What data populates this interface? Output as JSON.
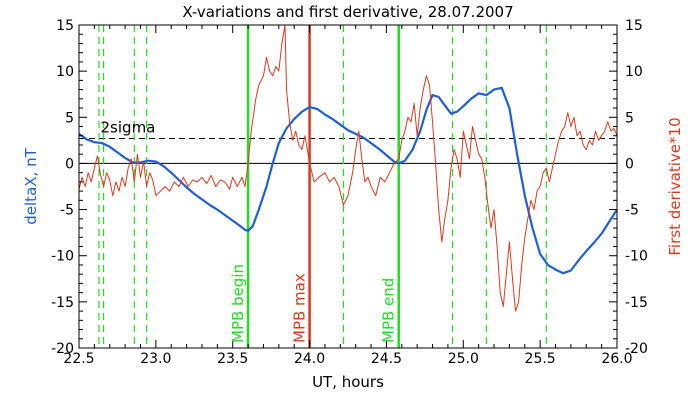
{
  "chart_data": {
    "type": "line",
    "title": "X-variations and first derivative, 28.07.2007",
    "xlabel": "UT, hours",
    "ylabel_left": "deltaX, nT",
    "ylabel_right": "First derivative*10",
    "xlim": [
      22.5,
      26.0
    ],
    "ylim_left": [
      -20,
      15
    ],
    "ylim_right": [
      -20,
      15
    ],
    "x_ticks": [
      "22.5",
      "23.0",
      "23.5",
      "24.0",
      "24.5",
      "25.0",
      "25.5",
      "26.0"
    ],
    "y_ticks_left": [
      "15",
      "10",
      "5",
      "0",
      "-5",
      "-10",
      "-15",
      "-20"
    ],
    "y_ticks_right": [
      "15",
      "10",
      "5",
      "0",
      "-5",
      "-10",
      "-15",
      "-20"
    ],
    "grid": false,
    "colors": {
      "deltaX": "#1f5fd6",
      "derivative": "#d83a1e",
      "mpb_boundary": "#22dd22",
      "mpb_max": "#d83a1e",
      "dashed_green": "#22dd22",
      "sigma_line": "#000000"
    },
    "annotations": {
      "sigma_label": "2sigma",
      "sigma_value": 2.7,
      "mpb_begin_label": "MPB begin",
      "mpb_max_label": "MPB max",
      "mpb_end_label": "MPB end",
      "mpb_begin_x": 23.6,
      "mpb_max_x": 24.0,
      "mpb_end_x": 24.58
    },
    "green_dashed_x": [
      22.63,
      22.66,
      22.86,
      22.94,
      24.22,
      24.93,
      25.15,
      25.54
    ],
    "series": [
      {
        "key": "deltaX",
        "axis": "left",
        "points": [
          [
            22.5,
            3.2
          ],
          [
            22.55,
            2.6
          ],
          [
            22.6,
            2.3
          ],
          [
            22.65,
            2.2
          ],
          [
            22.7,
            1.8
          ],
          [
            22.75,
            1.2
          ],
          [
            22.8,
            0.6
          ],
          [
            22.85,
            0.1
          ],
          [
            22.9,
            0.1
          ],
          [
            22.95,
            0.3
          ],
          [
            23.0,
            0.2
          ],
          [
            23.05,
            -0.3
          ],
          [
            23.1,
            -1.0
          ],
          [
            23.15,
            -1.8
          ],
          [
            23.2,
            -2.6
          ],
          [
            23.25,
            -3.3
          ],
          [
            23.3,
            -3.9
          ],
          [
            23.35,
            -4.5
          ],
          [
            23.4,
            -5.0
          ],
          [
            23.45,
            -5.6
          ],
          [
            23.5,
            -6.2
          ],
          [
            23.55,
            -6.8
          ],
          [
            23.58,
            -7.2
          ],
          [
            23.6,
            -7.3
          ],
          [
            23.63,
            -6.8
          ],
          [
            23.67,
            -5.0
          ],
          [
            23.72,
            -2.5
          ],
          [
            23.76,
            0.0
          ],
          [
            23.8,
            2.2
          ],
          [
            23.85,
            3.8
          ],
          [
            23.9,
            4.8
          ],
          [
            23.95,
            5.6
          ],
          [
            24.0,
            6.1
          ],
          [
            24.05,
            5.9
          ],
          [
            24.1,
            5.3
          ],
          [
            24.15,
            4.8
          ],
          [
            24.2,
            4.2
          ],
          [
            24.25,
            3.6
          ],
          [
            24.3,
            3.2
          ],
          [
            24.35,
            2.8
          ],
          [
            24.4,
            2.2
          ],
          [
            24.45,
            1.6
          ],
          [
            24.5,
            0.9
          ],
          [
            24.55,
            0.2
          ],
          [
            24.58,
            0.0
          ],
          [
            24.62,
            0.3
          ],
          [
            24.67,
            1.5
          ],
          [
            24.72,
            3.5
          ],
          [
            24.76,
            5.8
          ],
          [
            24.8,
            7.4
          ],
          [
            24.84,
            7.2
          ],
          [
            24.88,
            6.3
          ],
          [
            24.92,
            5.4
          ],
          [
            24.96,
            5.6
          ],
          [
            25.0,
            6.2
          ],
          [
            25.05,
            7.0
          ],
          [
            25.1,
            7.6
          ],
          [
            25.15,
            7.4
          ],
          [
            25.2,
            8.0
          ],
          [
            25.25,
            8.2
          ],
          [
            25.3,
            6.0
          ],
          [
            25.35,
            1.0
          ],
          [
            25.4,
            -3.5
          ],
          [
            25.45,
            -7.0
          ],
          [
            25.5,
            -9.8
          ],
          [
            25.55,
            -11.0
          ],
          [
            25.6,
            -11.5
          ],
          [
            25.65,
            -11.9
          ],
          [
            25.7,
            -11.6
          ],
          [
            25.75,
            -10.5
          ],
          [
            25.8,
            -9.5
          ],
          [
            25.85,
            -8.6
          ],
          [
            25.9,
            -7.6
          ],
          [
            25.95,
            -6.3
          ],
          [
            26.0,
            -5.0
          ]
        ]
      },
      {
        "key": "derivative",
        "axis": "right",
        "points": [
          [
            22.5,
            -2.8
          ],
          [
            22.52,
            -1.5
          ],
          [
            22.54,
            -2.5
          ],
          [
            22.56,
            -1.0
          ],
          [
            22.58,
            -2.0
          ],
          [
            22.6,
            -0.5
          ],
          [
            22.62,
            0.8
          ],
          [
            22.64,
            -1.2
          ],
          [
            22.66,
            -2.5
          ],
          [
            22.68,
            -1.0
          ],
          [
            22.7,
            -1.8
          ],
          [
            22.72,
            -3.5
          ],
          [
            22.74,
            -2.0
          ],
          [
            22.76,
            -3.0
          ],
          [
            22.78,
            -1.5
          ],
          [
            22.8,
            -2.5
          ],
          [
            22.82,
            -0.5
          ],
          [
            22.84,
            0.5
          ],
          [
            22.86,
            -2.0
          ],
          [
            22.88,
            1.0
          ],
          [
            22.9,
            -1.5
          ],
          [
            22.92,
            0.2
          ],
          [
            22.94,
            -2.5
          ],
          [
            22.96,
            -1.0
          ],
          [
            22.98,
            -1.8
          ],
          [
            23.0,
            -3.5
          ],
          [
            23.03,
            -3.0
          ],
          [
            23.06,
            -2.5
          ],
          [
            23.09,
            -3.0
          ],
          [
            23.12,
            -2.0
          ],
          [
            23.15,
            -2.5
          ],
          [
            23.18,
            -1.5
          ],
          [
            23.21,
            -2.5
          ],
          [
            23.24,
            -1.8
          ],
          [
            23.27,
            -2.0
          ],
          [
            23.3,
            -1.5
          ],
          [
            23.33,
            -2.2
          ],
          [
            23.36,
            -1.3
          ],
          [
            23.39,
            -2.5
          ],
          [
            23.42,
            -1.8
          ],
          [
            23.45,
            -2.0
          ],
          [
            23.48,
            -2.8
          ],
          [
            23.5,
            -1.5
          ],
          [
            23.53,
            -2.5
          ],
          [
            23.56,
            -1.5
          ],
          [
            23.58,
            -2.5
          ],
          [
            23.6,
            0.0
          ],
          [
            23.62,
            3.5
          ],
          [
            23.65,
            7.0
          ],
          [
            23.67,
            8.5
          ],
          [
            23.7,
            9.5
          ],
          [
            23.72,
            11.5
          ],
          [
            23.74,
            10.0
          ],
          [
            23.76,
            9.5
          ],
          [
            23.78,
            10.5
          ],
          [
            23.8,
            10.0
          ],
          [
            23.82,
            13.0
          ],
          [
            23.84,
            15.0
          ],
          [
            23.85,
            8.0
          ],
          [
            23.87,
            4.5
          ],
          [
            23.89,
            2.5
          ],
          [
            23.91,
            3.5
          ],
          [
            23.93,
            2.0
          ],
          [
            23.95,
            1.5
          ],
          [
            23.97,
            3.0
          ],
          [
            24.0,
            0.0
          ],
          [
            24.03,
            -2.0
          ],
          [
            24.06,
            -1.5
          ],
          [
            24.1,
            -1.0
          ],
          [
            24.13,
            -2.0
          ],
          [
            24.16,
            -1.5
          ],
          [
            24.19,
            -2.5
          ],
          [
            24.22,
            -4.5
          ],
          [
            24.25,
            -3.5
          ],
          [
            24.28,
            -1.0
          ],
          [
            24.3,
            1.5
          ],
          [
            24.32,
            3.5
          ],
          [
            24.34,
            0.5
          ],
          [
            24.36,
            -2.0
          ],
          [
            24.38,
            -1.5
          ],
          [
            24.4,
            -2.5
          ],
          [
            24.43,
            -3.5
          ],
          [
            24.46,
            -1.5
          ],
          [
            24.49,
            -2.0
          ],
          [
            24.52,
            -1.0
          ],
          [
            24.55,
            0.0
          ],
          [
            24.58,
            0.5
          ],
          [
            24.6,
            2.5
          ],
          [
            24.62,
            3.5
          ],
          [
            24.64,
            5.0
          ],
          [
            24.66,
            4.5
          ],
          [
            24.68,
            6.5
          ],
          [
            24.7,
            3.0
          ],
          [
            24.72,
            6.0
          ],
          [
            24.74,
            8.0
          ],
          [
            24.76,
            9.5
          ],
          [
            24.78,
            8.5
          ],
          [
            24.8,
            4.5
          ],
          [
            24.82,
            0.0
          ],
          [
            24.84,
            -5.0
          ],
          [
            24.86,
            -8.5
          ],
          [
            24.88,
            -6.0
          ],
          [
            24.9,
            -4.0
          ],
          [
            24.92,
            -0.5
          ],
          [
            24.94,
            1.5
          ],
          [
            24.96,
            0.5
          ],
          [
            24.98,
            -1.5
          ],
          [
            25.0,
            3.5
          ],
          [
            25.02,
            2.0
          ],
          [
            25.04,
            0.5
          ],
          [
            25.06,
            4.0
          ],
          [
            25.08,
            2.5
          ],
          [
            25.1,
            1.0
          ],
          [
            25.12,
            0.5
          ],
          [
            25.14,
            -1.5
          ],
          [
            25.16,
            -4.5
          ],
          [
            25.18,
            -7.0
          ],
          [
            25.2,
            -5.0
          ],
          [
            25.22,
            -9.0
          ],
          [
            25.24,
            -14.0
          ],
          [
            25.26,
            -15.5
          ],
          [
            25.28,
            -12.0
          ],
          [
            25.3,
            -8.5
          ],
          [
            25.32,
            -12.5
          ],
          [
            25.34,
            -16.0
          ],
          [
            25.36,
            -15.0
          ],
          [
            25.38,
            -11.0
          ],
          [
            25.4,
            -8.0
          ],
          [
            25.42,
            -6.0
          ],
          [
            25.44,
            -4.0
          ],
          [
            25.46,
            -5.0
          ],
          [
            25.48,
            -3.0
          ],
          [
            25.5,
            -2.5
          ],
          [
            25.52,
            -1.0
          ],
          [
            25.54,
            -0.5
          ],
          [
            25.56,
            -2.0
          ],
          [
            25.58,
            -0.5
          ],
          [
            25.6,
            1.0
          ],
          [
            25.62,
            2.5
          ],
          [
            25.64,
            3.5
          ],
          [
            25.66,
            4.0
          ],
          [
            25.68,
            5.5
          ],
          [
            25.7,
            4.0
          ],
          [
            25.72,
            5.0
          ],
          [
            25.74,
            3.0
          ],
          [
            25.76,
            3.5
          ],
          [
            25.78,
            2.0
          ],
          [
            25.8,
            1.5
          ],
          [
            25.82,
            2.5
          ],
          [
            25.84,
            2.0
          ],
          [
            25.86,
            3.5
          ],
          [
            25.88,
            2.5
          ],
          [
            25.9,
            3.0
          ],
          [
            25.92,
            3.5
          ],
          [
            25.94,
            4.5
          ],
          [
            25.96,
            3.5
          ],
          [
            25.98,
            3.8
          ],
          [
            26.0,
            3.0
          ]
        ]
      }
    ]
  }
}
